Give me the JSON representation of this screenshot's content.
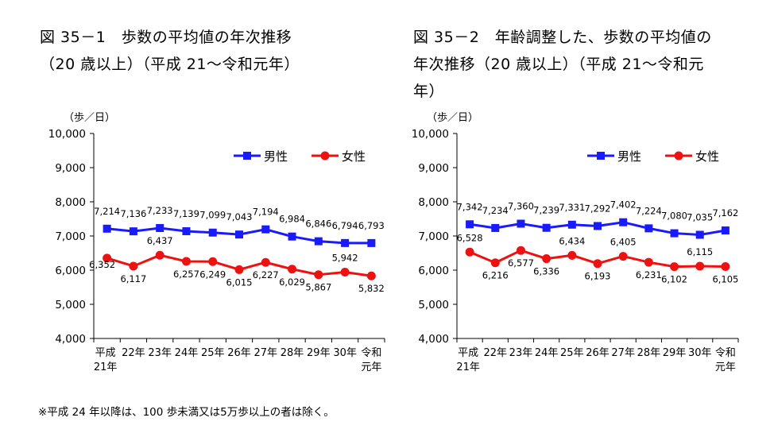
{
  "footnote": "※平成 24 年以降は、100 歩未満又は5万歩以上の者は除く。",
  "chart_data": [
    {
      "type": "line",
      "title_lines": [
        "図 35－1　歩数の平均値の年次推移",
        "（20 歳以上）（平成 21～令和元年）"
      ],
      "ylabel": "（歩／日）",
      "ylim": [
        4000,
        10000
      ],
      "yticks": [
        "4,000",
        "5,000",
        "6,000",
        "7,000",
        "8,000",
        "9,000",
        "10,000"
      ],
      "categories": [
        [
          "平成",
          "21年"
        ],
        [
          "22年"
        ],
        [
          "23年"
        ],
        [
          "24年"
        ],
        [
          "25年"
        ],
        [
          "26年"
        ],
        [
          "27年"
        ],
        [
          "28年"
        ],
        [
          "29年"
        ],
        [
          "30年"
        ],
        [
          "令和",
          "元年"
        ]
      ],
      "legend_position": "top-right",
      "series": [
        {
          "name": "男性",
          "color": "#1a1aff",
          "marker": "square",
          "values": [
            7214,
            7136,
            7233,
            7139,
            7099,
            7043,
            7194,
            6984,
            6846,
            6794,
            6793
          ],
          "labels": [
            "7,214",
            "7,136",
            "7,233",
            "7,139",
            "7,099",
            "7,043",
            "7,194",
            "6,984",
            "6,846",
            "6,794",
            "6,793"
          ]
        },
        {
          "name": "女性",
          "color": "#ee1111",
          "marker": "circle",
          "values": [
            6352,
            6117,
            6437,
            6257,
            6249,
            6015,
            6227,
            6029,
            5867,
            5942,
            5832
          ],
          "labels": [
            "6,352",
            "6,117",
            "6,437",
            "6,257",
            "6,249",
            "6,015",
            "6,227",
            "6,029",
            "5,867",
            "5,942",
            "5,832"
          ]
        }
      ]
    },
    {
      "type": "line",
      "title_lines": [
        "図 35－2　年齢調整した、歩数の平均値の",
        "年次推移（20 歳以上）（平成 21～令和元",
        "年）"
      ],
      "ylabel": "（歩／日）",
      "ylim": [
        4000,
        10000
      ],
      "yticks": [
        "4,000",
        "5,000",
        "6,000",
        "7,000",
        "8,000",
        "9,000",
        "10,000"
      ],
      "categories": [
        [
          "平成",
          "21年"
        ],
        [
          "22年"
        ],
        [
          "23年"
        ],
        [
          "24年"
        ],
        [
          "25年"
        ],
        [
          "26年"
        ],
        [
          "27年"
        ],
        [
          "28年"
        ],
        [
          "29年"
        ],
        [
          "30年"
        ],
        [
          "令和",
          "元年"
        ]
      ],
      "legend_position": "top-right",
      "series": [
        {
          "name": "男性",
          "color": "#1a1aff",
          "marker": "square",
          "values": [
            7342,
            7234,
            7360,
            7239,
            7331,
            7292,
            7402,
            7224,
            7080,
            7035,
            7162
          ],
          "labels": [
            "7,342",
            "7,234",
            "7,360",
            "7,239",
            "7,331",
            "7,292",
            "7,402",
            "7,224",
            "7,080",
            "7,035",
            "7,162"
          ]
        },
        {
          "name": "女性",
          "color": "#ee1111",
          "marker": "circle",
          "values": [
            6528,
            6216,
            6577,
            6336,
            6434,
            6193,
            6405,
            6231,
            6102,
            6115,
            6105
          ],
          "labels": [
            "6,528",
            "6,216",
            "6,577",
            "6,336",
            "6,434",
            "6,193",
            "6,405",
            "6,231",
            "6,102",
            "6,115",
            "6,105"
          ]
        }
      ]
    }
  ]
}
